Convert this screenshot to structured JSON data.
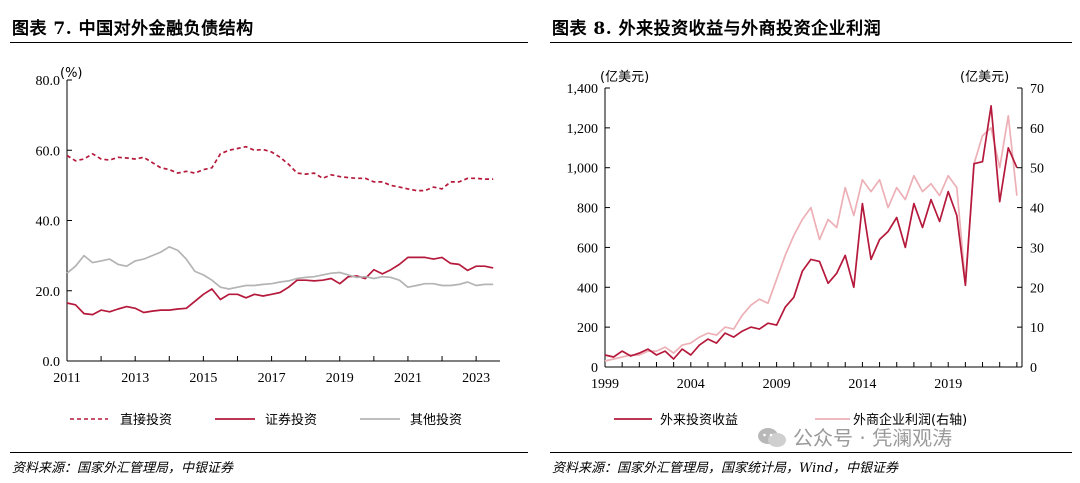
{
  "left": {
    "title": "图表 7. 中国对外金融负债结构",
    "source": "资料来源：国家外汇管理局，中银证券"
  },
  "right": {
    "title": "图表 8. 外来投资收益与外商投资企业利润",
    "source": "资料来源：国家外汇管理局，国家统计局，Wind，中银证券"
  },
  "watermark": "公众号 · 凭澜观涛",
  "colors": {
    "dark_red": "#b5193b",
    "light_pink": "#ecb0b6",
    "gray": "#b4b4b4"
  },
  "chart_data": [
    {
      "type": "line",
      "yunit": "(%)",
      "ylim": [
        0,
        80
      ],
      "yticks": [
        "0.0",
        "20.0",
        "40.0",
        "60.0",
        "80.0"
      ],
      "xlim": [
        2011,
        2023.7
      ],
      "xticks": [
        "2011",
        "2013",
        "2015",
        "2017",
        "2019",
        "2021",
        "2023"
      ],
      "legend_position": "bottom",
      "series": [
        {
          "name": "直接投资",
          "style": "dashed",
          "color": "#b5193b",
          "x": [
            2011,
            2011.25,
            2011.5,
            2011.75,
            2012,
            2012.25,
            2012.5,
            2012.75,
            2013,
            2013.25,
            2013.5,
            2013.75,
            2014,
            2014.25,
            2014.5,
            2014.75,
            2015,
            2015.25,
            2015.5,
            2015.75,
            2016,
            2016.25,
            2016.5,
            2016.75,
            2017,
            2017.25,
            2017.5,
            2017.75,
            2018,
            2018.25,
            2018.5,
            2018.75,
            2019,
            2019.25,
            2019.5,
            2019.75,
            2020,
            2020.25,
            2020.5,
            2020.75,
            2021,
            2021.25,
            2021.5,
            2021.75,
            2022,
            2022.25,
            2022.5,
            2022.75,
            2023,
            2023.25,
            2023.5
          ],
          "y": [
            58.5,
            57,
            57.5,
            59,
            57.5,
            57.2,
            58,
            57.8,
            57.5,
            58,
            56.5,
            55,
            54.5,
            53.5,
            54,
            53.5,
            54.5,
            55,
            59,
            60,
            60.5,
            61,
            60,
            60.2,
            59.5,
            58,
            56,
            53.5,
            53.2,
            53.5,
            52,
            53,
            52.5,
            52.2,
            52,
            52,
            51,
            51,
            50,
            49.5,
            49,
            48.5,
            48.5,
            49.5,
            49,
            51,
            51,
            52,
            52,
            51.8,
            51.8
          ]
        },
        {
          "name": "证券投资",
          "style": "solid",
          "color": "#b5193b",
          "x": [
            2011,
            2011.25,
            2011.5,
            2011.75,
            2012,
            2012.25,
            2012.5,
            2012.75,
            2013,
            2013.25,
            2013.5,
            2013.75,
            2014,
            2014.25,
            2014.5,
            2014.75,
            2015,
            2015.25,
            2015.5,
            2015.75,
            2016,
            2016.25,
            2016.5,
            2016.75,
            2017,
            2017.25,
            2017.5,
            2017.75,
            2018,
            2018.25,
            2018.5,
            2018.75,
            2019,
            2019.25,
            2019.5,
            2019.75,
            2020,
            2020.25,
            2020.5,
            2020.75,
            2021,
            2021.25,
            2021.5,
            2021.75,
            2022,
            2022.25,
            2022.5,
            2022.75,
            2023,
            2023.25,
            2023.5
          ],
          "y": [
            16.5,
            16,
            13.5,
            13.2,
            14.5,
            14,
            14.8,
            15.5,
            15,
            13.8,
            14.2,
            14.5,
            14.5,
            14.8,
            15,
            17,
            19,
            20.5,
            17.5,
            19,
            19,
            18,
            19,
            18.5,
            19,
            19.5,
            21,
            23,
            23,
            22.8,
            23,
            23.5,
            22,
            24,
            24.2,
            23.5,
            26,
            24.8,
            26,
            27.5,
            29.5,
            29.5,
            29.5,
            29,
            29.5,
            27.8,
            27.5,
            25.8,
            27,
            27,
            26.5
          ]
        },
        {
          "name": "其他投资",
          "style": "solid",
          "color": "#b4b4b4",
          "x": [
            2011,
            2011.25,
            2011.5,
            2011.75,
            2012,
            2012.25,
            2012.5,
            2012.75,
            2013,
            2013.25,
            2013.5,
            2013.75,
            2014,
            2014.25,
            2014.5,
            2014.75,
            2015,
            2015.25,
            2015.5,
            2015.75,
            2016,
            2016.25,
            2016.5,
            2016.75,
            2017,
            2017.25,
            2017.5,
            2017.75,
            2018,
            2018.25,
            2018.5,
            2018.75,
            2019,
            2019.25,
            2019.5,
            2019.75,
            2020,
            2020.25,
            2020.5,
            2020.75,
            2021,
            2021.25,
            2021.5,
            2021.75,
            2022,
            2022.25,
            2022.5,
            2022.75,
            2023,
            2023.25,
            2023.5
          ],
          "y": [
            25,
            27,
            30,
            28,
            28.5,
            29,
            27.5,
            27,
            28.5,
            29,
            30,
            31,
            32.5,
            31.5,
            29,
            25.5,
            24.5,
            23,
            21,
            20.5,
            21,
            21.5,
            21.5,
            21.8,
            22,
            22.5,
            22.8,
            23.5,
            23.8,
            24,
            24.5,
            25,
            25.2,
            24.5,
            23.8,
            24,
            23.5,
            24,
            23.8,
            23,
            21,
            21.5,
            22,
            22,
            21.5,
            21.5,
            21.8,
            22.5,
            21.5,
            21.8,
            21.8
          ]
        }
      ]
    },
    {
      "type": "line",
      "yunit_left": "(亿美元)",
      "yunit_right": "(亿美元)",
      "ylim_left": [
        0,
        1400
      ],
      "yticks_left": [
        "0",
        "200",
        "400",
        "600",
        "800",
        "1,000",
        "1,200",
        "1,400"
      ],
      "ylim_right": [
        0,
        70
      ],
      "yticks_right": [
        "0",
        "10",
        "20",
        "30",
        "40",
        "50",
        "60",
        "70"
      ],
      "xlim": [
        1999,
        2023.3
      ],
      "xticks": [
        "1999",
        "2004",
        "2009",
        "2014",
        "2019"
      ],
      "legend_position": "bottom",
      "series": [
        {
          "name": "外来投资收益",
          "axis": "left",
          "color": "#b5193b",
          "x": [
            1999,
            1999.5,
            2000,
            2000.5,
            2001,
            2001.5,
            2002,
            2002.5,
            2003,
            2003.5,
            2004,
            2004.5,
            2005,
            2005.5,
            2006,
            2006.5,
            2007,
            2007.5,
            2008,
            2008.5,
            2009,
            2009.5,
            2010,
            2010.5,
            2011,
            2011.5,
            2012,
            2012.5,
            2013,
            2013.5,
            2014,
            2014.5,
            2015,
            2015.5,
            2016,
            2016.5,
            2017,
            2017.5,
            2018,
            2018.5,
            2019,
            2019.5,
            2020,
            2020.5,
            2021,
            2021.5,
            2022,
            2022.5,
            2023
          ],
          "y": [
            60,
            50,
            80,
            55,
            70,
            90,
            60,
            80,
            40,
            90,
            60,
            110,
            140,
            120,
            170,
            150,
            180,
            200,
            190,
            220,
            210,
            300,
            350,
            480,
            540,
            530,
            420,
            470,
            560,
            400,
            820,
            540,
            640,
            680,
            750,
            600,
            820,
            700,
            840,
            730,
            880,
            760,
            410,
            1020,
            1030,
            1310,
            830,
            1100,
            1000
          ]
        },
        {
          "name": "外商企业利润(右轴)",
          "axis": "right",
          "color": "#ecb0b6",
          "x": [
            1999,
            1999.5,
            2000,
            2000.5,
            2001,
            2001.5,
            2002,
            2002.5,
            2003,
            2003.5,
            2004,
            2004.5,
            2005,
            2005.5,
            2006,
            2006.5,
            2007,
            2007.5,
            2008,
            2008.5,
            2009,
            2009.5,
            2010,
            2010.5,
            2011,
            2011.5,
            2012,
            2012.5,
            2013,
            2013.5,
            2014,
            2014.5,
            2015,
            2015.5,
            2016,
            2016.5,
            2017,
            2017.5,
            2018,
            2018.5,
            2019,
            2019.5,
            2020,
            2020.5,
            2021,
            2021.5,
            2022,
            2022.5,
            2023
          ],
          "y": [
            1.5,
            2,
            2.5,
            3,
            3,
            4,
            4,
            5,
            3.5,
            5.5,
            6,
            7.5,
            8.5,
            8,
            10,
            9.5,
            13,
            15.5,
            17,
            16,
            22,
            28,
            33,
            37,
            40,
            32,
            37,
            35,
            45,
            38,
            47,
            44,
            47,
            40,
            45,
            42,
            48,
            44,
            46,
            43,
            48,
            45,
            21,
            51,
            58,
            60,
            50,
            63,
            43
          ]
        }
      ]
    }
  ]
}
